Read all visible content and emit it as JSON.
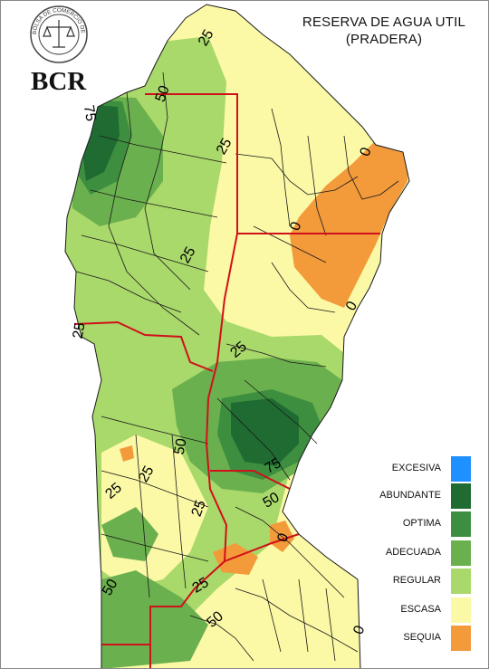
{
  "title": {
    "line1": "RESERVA DE AGUA UTIL",
    "line2": "(PRADERA)"
  },
  "logo": {
    "text": "BCR",
    "seal_text": "BOLSA DE COMERCIO DE ROSARIO"
  },
  "legend": [
    {
      "label": "EXCESIVA",
      "color": "#1e90ff"
    },
    {
      "label": "ABUNDANTE",
      "color": "#1f6b32"
    },
    {
      "label": "OPTIMA",
      "color": "#3d8f3f"
    },
    {
      "label": "ADECUADA",
      "color": "#6bb04e"
    },
    {
      "label": "REGULAR",
      "color": "#a9d86b"
    },
    {
      "label": "ESCASA",
      "color": "#fbf9a6"
    },
    {
      "label": "SEQUIA",
      "color": "#f39a3b"
    }
  ],
  "contour_labels": [
    "25",
    "50",
    "75",
    "25",
    "0",
    "0",
    "25",
    "0",
    "25",
    "25",
    "50",
    "25",
    "75",
    "50",
    "25",
    "25",
    "0",
    "50",
    "25",
    "50",
    "0"
  ],
  "colors": {
    "province_border": "#d0101a",
    "county_line": "#1a1a1a",
    "background": "#ffffff"
  }
}
